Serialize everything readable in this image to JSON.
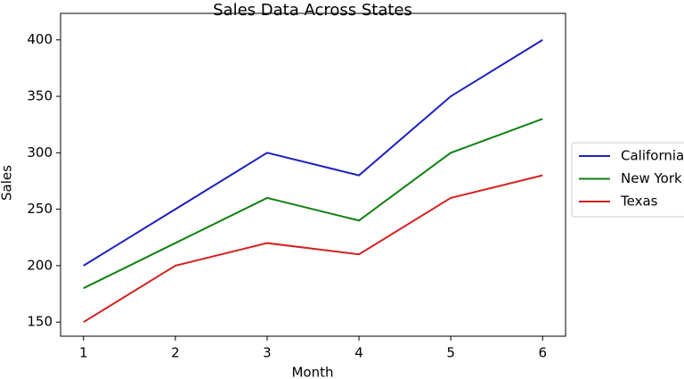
{
  "chart_data": {
    "type": "line",
    "title": "Sales Data Across States",
    "xlabel": "Month",
    "ylabel": "Sales",
    "x": [
      1,
      2,
      3,
      4,
      5,
      6
    ],
    "series": [
      {
        "name": "California",
        "color": "#1f1fbf",
        "values": [
          200,
          250,
          300,
          280,
          350,
          400
        ]
      },
      {
        "name": "New York",
        "color": "#128012",
        "values": [
          180,
          220,
          260,
          240,
          300,
          330
        ]
      },
      {
        "name": "Texas",
        "color": "#d62020",
        "values": [
          150,
          200,
          220,
          210,
          260,
          280
        ]
      }
    ],
    "xlim": [
      0.75,
      6.25
    ],
    "xticks": [
      1,
      2,
      3,
      4,
      5,
      6
    ],
    "ylim": [
      137.5,
      423.5
    ],
    "yticks": [
      150,
      200,
      250,
      300,
      350,
      400
    ],
    "legend": "outside-right"
  }
}
